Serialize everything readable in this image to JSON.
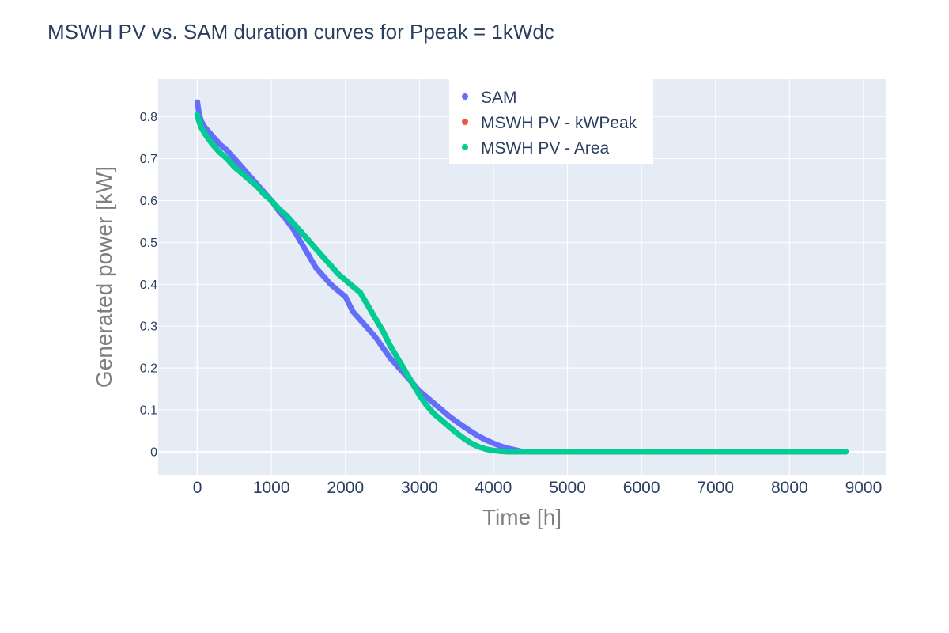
{
  "chart_data": {
    "type": "scatter",
    "title": "MSWH PV vs. SAM duration curves for Ppeak = 1kWdc",
    "xlabel": "Time [h]",
    "ylabel": "Generated power [kW]",
    "xlim": [
      -530,
      9300
    ],
    "ylim": [
      -0.055,
      0.89
    ],
    "x_ticks": [
      0,
      1000,
      2000,
      3000,
      4000,
      5000,
      6000,
      7000,
      8000,
      9000
    ],
    "x_tick_labels": [
      "0",
      "1000",
      "2000",
      "3000",
      "4000",
      "5000",
      "6000",
      "7000",
      "8000",
      "9000"
    ],
    "y_ticks": [
      0,
      0.1,
      0.2,
      0.3,
      0.4,
      0.5,
      0.6,
      0.7,
      0.8
    ],
    "y_tick_labels": [
      "0",
      "0.1",
      "0.2",
      "0.3",
      "0.4",
      "0.5",
      "0.6",
      "0.7",
      "0.8"
    ],
    "grid": true,
    "legend_position": "top-center",
    "series": [
      {
        "name": "SAM",
        "color": "#636efa",
        "x": [
          0,
          20,
          50,
          100,
          200,
          300,
          400,
          500,
          600,
          700,
          800,
          900,
          1000,
          1100,
          1200,
          1300,
          1400,
          1500,
          1600,
          1700,
          1800,
          1900,
          2000,
          2100,
          2200,
          2300,
          2400,
          2500,
          2600,
          2700,
          2800,
          2900,
          3000,
          3100,
          3200,
          3300,
          3400,
          3500,
          3600,
          3700,
          3800,
          3900,
          4000,
          4100,
          4200,
          4300,
          4400,
          5000,
          6000,
          7000,
          8000,
          8760
        ],
        "y": [
          0.835,
          0.81,
          0.79,
          0.775,
          0.755,
          0.735,
          0.72,
          0.7,
          0.68,
          0.66,
          0.64,
          0.62,
          0.6,
          0.575,
          0.555,
          0.53,
          0.5,
          0.47,
          0.44,
          0.42,
          0.4,
          0.385,
          0.37,
          0.335,
          0.315,
          0.295,
          0.275,
          0.25,
          0.225,
          0.205,
          0.185,
          0.165,
          0.145,
          0.13,
          0.115,
          0.1,
          0.085,
          0.072,
          0.06,
          0.048,
          0.037,
          0.028,
          0.02,
          0.013,
          0.008,
          0.004,
          0.0,
          0.0,
          0.0,
          0.0,
          0.0,
          0.0
        ]
      },
      {
        "name": "MSWH PV - kWPeak",
        "color": "#ef553b",
        "x": [
          0,
          20,
          50,
          100,
          200,
          300,
          400,
          500,
          600,
          700,
          800,
          900,
          1000,
          1100,
          1200,
          1300,
          1400,
          1500,
          1600,
          1700,
          1800,
          1900,
          2000,
          2100,
          2200,
          2300,
          2400,
          2500,
          2600,
          2700,
          2800,
          2900,
          3000,
          3100,
          3200,
          3300,
          3400,
          3500,
          3600,
          3700,
          3800,
          3900,
          4000,
          4100,
          4200,
          4300,
          4400,
          5000,
          6000,
          7000,
          8000,
          8760
        ],
        "y": [
          0.805,
          0.79,
          0.775,
          0.76,
          0.735,
          0.715,
          0.7,
          0.68,
          0.665,
          0.65,
          0.635,
          0.615,
          0.6,
          0.58,
          0.565,
          0.545,
          0.525,
          0.505,
          0.485,
          0.465,
          0.445,
          0.425,
          0.41,
          0.395,
          0.38,
          0.35,
          0.32,
          0.29,
          0.255,
          0.225,
          0.195,
          0.165,
          0.135,
          0.11,
          0.09,
          0.075,
          0.06,
          0.045,
          0.032,
          0.02,
          0.012,
          0.006,
          0.003,
          0.001,
          0.0,
          0.0,
          0.0,
          0.0,
          0.0,
          0.0,
          0.0,
          0.0
        ]
      },
      {
        "name": "MSWH PV - Area",
        "color": "#00cc96",
        "x": [
          0,
          20,
          50,
          100,
          200,
          300,
          400,
          500,
          600,
          700,
          800,
          900,
          1000,
          1100,
          1200,
          1300,
          1400,
          1500,
          1600,
          1700,
          1800,
          1900,
          2000,
          2100,
          2200,
          2300,
          2400,
          2500,
          2600,
          2700,
          2800,
          2900,
          3000,
          3100,
          3200,
          3300,
          3400,
          3500,
          3600,
          3700,
          3800,
          3900,
          4000,
          4100,
          4200,
          4300,
          4400,
          5000,
          6000,
          7000,
          8000,
          8760
        ],
        "y": [
          0.805,
          0.79,
          0.775,
          0.76,
          0.735,
          0.715,
          0.7,
          0.68,
          0.665,
          0.65,
          0.635,
          0.615,
          0.6,
          0.58,
          0.565,
          0.545,
          0.525,
          0.505,
          0.485,
          0.465,
          0.445,
          0.425,
          0.41,
          0.395,
          0.38,
          0.35,
          0.32,
          0.29,
          0.255,
          0.225,
          0.195,
          0.165,
          0.135,
          0.11,
          0.09,
          0.075,
          0.06,
          0.045,
          0.032,
          0.02,
          0.012,
          0.006,
          0.003,
          0.001,
          0.0,
          0.0,
          0.0,
          0.0,
          0.0,
          0.0,
          0.0,
          0.0
        ]
      }
    ]
  }
}
